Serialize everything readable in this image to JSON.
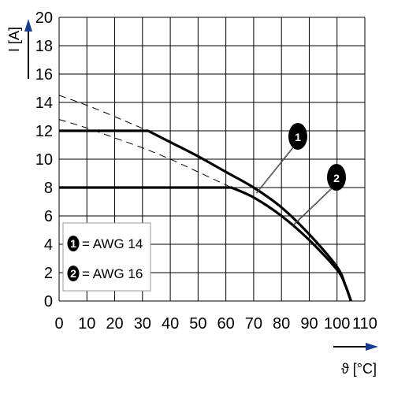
{
  "chart_data": {
    "type": "line",
    "xlabel": "ϑ [°C]",
    "ylabel": "I [A]",
    "xlim": [
      0,
      110
    ],
    "ylim": [
      0,
      20
    ],
    "x_ticks": [
      0,
      10,
      20,
      30,
      40,
      50,
      60,
      70,
      80,
      90,
      100,
      110
    ],
    "y_ticks": [
      0,
      2,
      4,
      6,
      8,
      10,
      12,
      14,
      16,
      18,
      20
    ],
    "grid": true,
    "legend": {
      "placement": "bottom-left",
      "entries": [
        {
          "badge": "1",
          "text": "= AWG 14"
        },
        {
          "badge": "2",
          "text": "= AWG 16"
        }
      ]
    },
    "series": [
      {
        "id": "1",
        "style": "solid",
        "x": [
          0,
          32,
          40,
          50,
          60,
          70,
          80,
          90,
          100,
          103,
          105
        ],
        "y": [
          12,
          12,
          11.2,
          10.2,
          9.1,
          8.0,
          6.6,
          4.7,
          2.4,
          1.1,
          0
        ]
      },
      {
        "id": "2",
        "style": "solid",
        "x": [
          0,
          62,
          70,
          80,
          90,
          100,
          103,
          105
        ],
        "y": [
          8,
          8,
          7.3,
          6.0,
          4.3,
          2.2,
          1.1,
          0
        ]
      },
      {
        "id": "1-extrapolated",
        "style": "dashed",
        "x": [
          0,
          10,
          20,
          32
        ],
        "y": [
          14.5,
          13.8,
          13.0,
          12.0
        ]
      },
      {
        "id": "2-extrapolated",
        "style": "dashed",
        "x": [
          0,
          10,
          20,
          30,
          40,
          50,
          62
        ],
        "y": [
          12.8,
          12.2,
          11.5,
          10.8,
          10.0,
          9.1,
          8.0
        ]
      }
    ],
    "annotations": [
      {
        "label": "1",
        "points_to_series": "1",
        "x": 71,
        "y": 7.6
      },
      {
        "label": "2",
        "points_to_series": "2",
        "x": 84,
        "y": 5.3
      }
    ],
    "colors": {
      "line": "#000000",
      "grid": "#000000",
      "arrow_accent": "#1a3c8f"
    }
  }
}
